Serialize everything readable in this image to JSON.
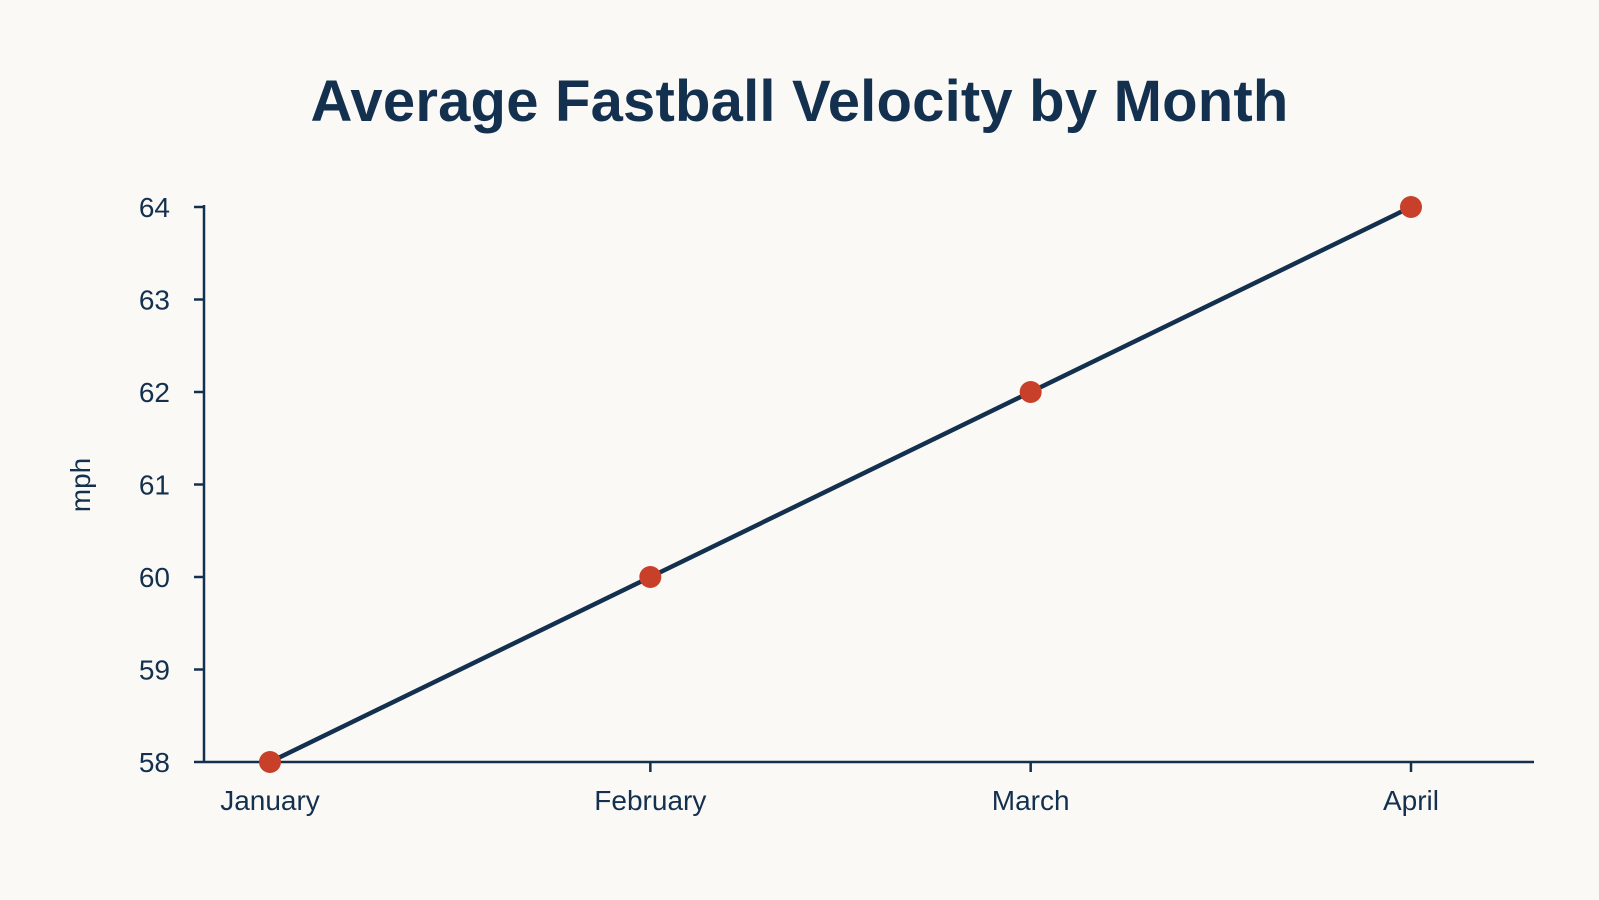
{
  "chart_data": {
    "type": "line",
    "title": "Average Fastball Velocity by Month",
    "xlabel": "",
    "ylabel": "mph",
    "categories": [
      "January",
      "February",
      "March",
      "April"
    ],
    "series": [
      {
        "values": [
          58,
          60,
          62,
          64
        ]
      }
    ],
    "ylim": [
      58,
      64
    ],
    "yticks": [
      58,
      59,
      60,
      61,
      62,
      63,
      64
    ],
    "grid": false,
    "legend": "none",
    "colors": {
      "line": "#14304f",
      "marker": "#c8402a",
      "axis": "#14304f",
      "text": "#14304f",
      "background": "#fbf9f5"
    }
  }
}
